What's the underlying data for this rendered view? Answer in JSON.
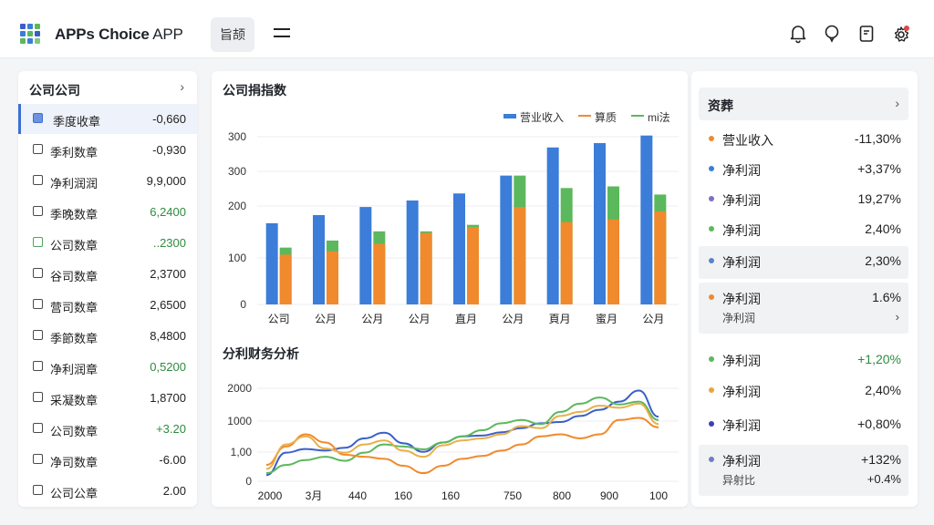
{
  "header": {
    "app_title_bold": "APPs Choice",
    "app_title_light": " APP",
    "nav_tab": "旨颉",
    "icons": [
      "bell-icon",
      "chat-icon",
      "document-icon",
      "gear-icon"
    ],
    "notification_color": "#e04646"
  },
  "left_panel": {
    "title": "公司公司",
    "items": [
      {
        "label": "季度收章",
        "value": "-0,660",
        "active": true,
        "green": false
      },
      {
        "label": "季利数章",
        "value": "-0,930",
        "active": false,
        "green": false
      },
      {
        "label": "净利润润",
        "value": "9,9,000",
        "active": false,
        "green": false
      },
      {
        "label": "季晚数章",
        "value": "6,2400",
        "active": false,
        "green": true
      },
      {
        "label": "公司数章",
        "value": "..2300",
        "active": false,
        "green": true
      },
      {
        "label": "谷司数章",
        "value": "2,3700",
        "active": false,
        "green": false
      },
      {
        "label": "营司数章",
        "value": "2,6500",
        "active": false,
        "green": false
      },
      {
        "label": "季節数章",
        "value": "8,4800",
        "active": false,
        "green": false
      },
      {
        "label": "净利润章",
        "value": "0,5200",
        "active": false,
        "green": true
      },
      {
        "label": "采凝数章",
        "value": "1,8700",
        "active": false,
        "green": false
      },
      {
        "label": "公司数章",
        "value": "+3.20",
        "active": false,
        "green": true
      },
      {
        "label": "净司数章",
        "value": "-6.00",
        "active": false,
        "green": false
      },
      {
        "label": "公司公章",
        "value": "2.00",
        "active": false,
        "green": false
      }
    ]
  },
  "bar_chart": {
    "title": "公司捐指数",
    "legend": [
      {
        "name": "营业收入",
        "color": "#3b7dd8",
        "kind": "bar"
      },
      {
        "name": "算质",
        "color": "#f08a2c",
        "kind": "line"
      },
      {
        "name": "mi法",
        "color": "#5cb85c",
        "kind": "line"
      }
    ]
  },
  "line_chart": {
    "title": "分利财务分析"
  },
  "chart_data": [
    {
      "type": "bar",
      "title": "公司捐指数",
      "y_tick_labels": [
        "300",
        "300",
        "200",
        "100",
        "0"
      ],
      "categories": [
        "公司",
        "公月",
        "公月",
        "公月",
        "直月",
        "公月",
        "頁月",
        "蜜月",
        "公月"
      ],
      "series": [
        {
          "name": "营业收入",
          "color": "#3b7dd8",
          "values": [
            150,
            165,
            180,
            192,
            205,
            238,
            290,
            298,
            312
          ]
        },
        {
          "name": "算质",
          "color": "#f08a2c",
          "values": [
            92,
            98,
            112,
            132,
            143,
            180,
            152,
            157,
            172
          ]
        },
        {
          "name": "mi法",
          "color": "#5cb85c",
          "values": [
            105,
            118,
            135,
            135,
            147,
            238,
            215,
            218,
            203
          ]
        }
      ],
      "ylim": [
        0,
        330
      ],
      "grid": true,
      "legend": "top-right"
    },
    {
      "type": "line",
      "title": "分利财务分析",
      "y_tick_labels": [
        "2000",
        "1000",
        "1,00",
        "0"
      ],
      "x_tick_labels": [
        "2000",
        "3月",
        "440",
        "160",
        "160",
        "750",
        "800",
        "900",
        "100"
      ],
      "x": [
        0,
        0.5,
        1,
        1.5,
        2,
        2.5,
        3,
        3.5,
        4,
        4.5,
        5,
        5.5,
        6,
        6.5,
        7,
        7.5,
        8,
        8.5,
        9,
        9.5,
        10
      ],
      "series": [
        {
          "color": "#3b5fc9",
          "values": [
            150,
            700,
            790,
            750,
            820,
            1050,
            1190,
            930,
            720,
            950,
            1100,
            1120,
            1200,
            1300,
            1420,
            1450,
            1600,
            1750,
            1950,
            2220,
            1580
          ]
        },
        {
          "color": "#5cb85c",
          "values": [
            200,
            400,
            520,
            600,
            500,
            700,
            900,
            850,
            780,
            950,
            1100,
            1250,
            1420,
            1500,
            1400,
            1700,
            1900,
            2050,
            1880,
            1950,
            1500
          ]
        },
        {
          "color": "#f08a2c",
          "values": [
            400,
            850,
            1150,
            950,
            650,
            600,
            550,
            380,
            200,
            380,
            550,
            620,
            750,
            900,
            1100,
            1150,
            1050,
            1150,
            1500,
            1550,
            1320
          ]
        },
        {
          "color": "#e8b04a",
          "values": [
            300,
            900,
            1100,
            800,
            700,
            900,
            1000,
            750,
            600,
            880,
            1000,
            1050,
            1150,
            1350,
            1300,
            1600,
            1700,
            1850,
            1800,
            1900,
            1400
          ]
        }
      ],
      "ylim": [
        0,
        2500
      ],
      "grid": true
    }
  ],
  "right_panel": {
    "title": "资葬",
    "items": [
      {
        "label": "营业收入",
        "value": "-11,30%",
        "dot": "#f08a2c",
        "green": false,
        "hl": false
      },
      {
        "label": "净利润",
        "value": "+3,37%",
        "dot": "#3b7dd8",
        "green": false,
        "hl": false
      },
      {
        "label": "净利润",
        "value": "19,27%",
        "dot": "#7b6fc8",
        "green": false,
        "hl": false
      },
      {
        "label": "净利润",
        "value": "2,40%",
        "dot": "#5cb85c",
        "green": false,
        "hl": false
      },
      {
        "label": "净利润",
        "value": "2,30%",
        "dot": "#5a83c8",
        "green": false,
        "hl": true
      },
      {
        "label": "净利润",
        "value": "1.6%",
        "dot": "#f08a2c",
        "green": false,
        "hl": true,
        "sub": "净利润"
      },
      {
        "label": "净利润",
        "value": "+1,20%",
        "dot": "#5cb85c",
        "green": true,
        "hl": false
      },
      {
        "label": "净利润",
        "value": "2,40%",
        "dot": "#e8a63a",
        "green": false,
        "hl": false
      },
      {
        "label": "净利润",
        "value": "+0,80%",
        "dot": "#3b3fb8",
        "green": false,
        "hl": false
      },
      {
        "label": "净利润",
        "value": "+132%",
        "dot": "#6d7fc4",
        "green": false,
        "hl": true,
        "sub": "异射比",
        "subval": "+0.4%"
      }
    ]
  }
}
